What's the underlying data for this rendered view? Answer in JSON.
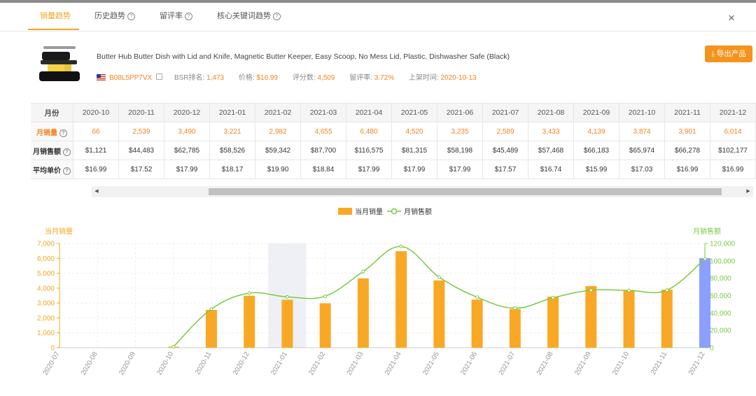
{
  "tabs": [
    {
      "label": "销量趋势",
      "active": true,
      "help": false
    },
    {
      "label": "历史趋势",
      "active": false,
      "help": true
    },
    {
      "label": "留评率",
      "active": false,
      "help": true
    },
    {
      "label": "核心关键词趋势",
      "active": false,
      "help": true
    }
  ],
  "close_icon": "×",
  "product": {
    "title": "Butter Hub Butter Dish with Lid and Knife, Magnetic Butter Keeper, Easy Scoop, No Mess Lid, Plastic, Dishwasher Safe (Black)",
    "asin": "B08L5PP7VX",
    "bsr_label": "BSR排名:",
    "bsr_value": "1,473",
    "price_label": "价格:",
    "price_value": "$16.99",
    "reviews_label": "评分数:",
    "reviews_value": "4,509",
    "review_rate_label": "留评率:",
    "review_rate_value": "3.72%",
    "listed_label": "上架时间:",
    "listed_value": "2020-10-13"
  },
  "export_button": "导出产品",
  "table": {
    "header_label": "月份",
    "months": [
      "2020-10",
      "2020-11",
      "2020-12",
      "2021-01",
      "2021-02",
      "2021-03",
      "2021-04",
      "2021-05",
      "2021-06",
      "2021-07",
      "2021-08",
      "2021-09",
      "2021-10",
      "2021-11",
      "2021-12"
    ],
    "rows": [
      {
        "label": "月销量",
        "help": true,
        "values": [
          "66",
          "2,539",
          "3,490",
          "3,221",
          "2,982",
          "4,655",
          "6,480",
          "4,520",
          "3,235",
          "2,589",
          "3,433",
          "4,139",
          "3,874",
          "3,901",
          "6,014"
        ]
      },
      {
        "label": "月销售额",
        "help": true,
        "values": [
          "$1,121",
          "$44,483",
          "$62,785",
          "$58,526",
          "$59,342",
          "$87,700",
          "$116,575",
          "$81,315",
          "$58,198",
          "$45,489",
          "$57,468",
          "$66,183",
          "$65,974",
          "$66,278",
          "$102,177"
        ]
      },
      {
        "label": "平均单价",
        "help": true,
        "values": [
          "$16.99",
          "$17.52",
          "$17.99",
          "$18.17",
          "$19.90",
          "$18.84",
          "$17.99",
          "$17.99",
          "$17.99",
          "$17.57",
          "$16.74",
          "$15.99",
          "$17.03",
          "$16.99",
          "$16.99"
        ]
      }
    ]
  },
  "chart_data": {
    "type": "bar",
    "legend": [
      {
        "name": "当月销量",
        "color": "#f9a825"
      },
      {
        "name": "月销售额",
        "color": "#7ac943"
      }
    ],
    "left_axis_title": "当月销量",
    "right_axis_title": "月销售额",
    "categories": [
      "2020-07",
      "2020-08",
      "2020-09",
      "2020-10",
      "2020-11",
      "2020-12",
      "2021-01",
      "2021-02",
      "2021-03",
      "2021-04",
      "2021-05",
      "2021-06",
      "2021-07",
      "2021-08",
      "2021-09",
      "2021-10",
      "2021-11",
      "2021-12"
    ],
    "series": [
      {
        "name": "当月销量",
        "axis": "left",
        "kind": "bar",
        "values": [
          0,
          0,
          0,
          66,
          2539,
          3490,
          3221,
          2982,
          4655,
          6480,
          4520,
          3235,
          2589,
          3433,
          4139,
          3874,
          3901,
          6014
        ]
      },
      {
        "name": "月销售额",
        "axis": "right",
        "kind": "line",
        "values": [
          null,
          null,
          null,
          1121,
          44483,
          62785,
          58526,
          59342,
          87700,
          116575,
          81315,
          58198,
          45489,
          57468,
          66183,
          65974,
          66278,
          102177
        ]
      }
    ],
    "left_ylim": [
      0,
      7000
    ],
    "left_ticks": [
      "0",
      "1,000",
      "2,000",
      "3,000",
      "4,000",
      "5,000",
      "6,000",
      "7,000"
    ],
    "right_ylim": [
      0,
      120000
    ],
    "right_ticks": [
      "0",
      "20,000",
      "40,000",
      "60,000",
      "80,000",
      "100,000",
      "120,000"
    ],
    "highlighted_category": "2021-01",
    "last_bar_color": "#8c9eff",
    "bar_color": "#f9a825",
    "line_color": "#7ac943",
    "left_axis_color": "#f5a623",
    "right_axis_color": "#7ac943",
    "grid": true
  }
}
